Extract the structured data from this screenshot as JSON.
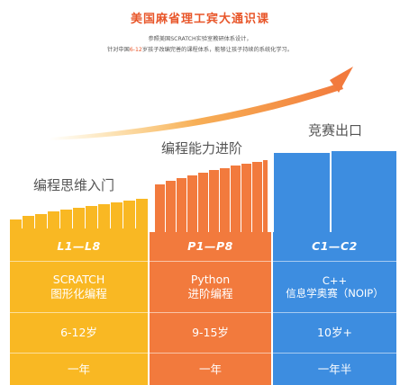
{
  "header": {
    "title": "美国麻省理工宾大通识课",
    "subtitle_line1": "参照美国SCRATCH实验室教研体系设计，",
    "subtitle_line2_pre": "针对中国",
    "subtitle_line2_hl": "6-12",
    "subtitle_line2_post": "岁孩子改编完善的课程体系，能够让孩子持续的系统化学习。"
  },
  "stages": [
    {
      "label": "编程思维入门",
      "code": "L1—L8",
      "course_line1": "SCRATCH",
      "course_line2": "图形化编程",
      "age": "6-12岁",
      "duration": "一年",
      "color": "#f9b823"
    },
    {
      "label": "编程能力进阶",
      "code": "P1—P8",
      "course_line1": "Python",
      "course_line2": "进阶编程",
      "age": "9-15岁",
      "duration": "一年",
      "color": "#f27a3d"
    },
    {
      "label": "竞赛出口",
      "code": "C1—C2",
      "course_line1": "C++",
      "course_line2": "信息学奥赛（NOIP）",
      "age": "10岁+",
      "duration": "一年半",
      "color": "#3d8de0"
    }
  ]
}
